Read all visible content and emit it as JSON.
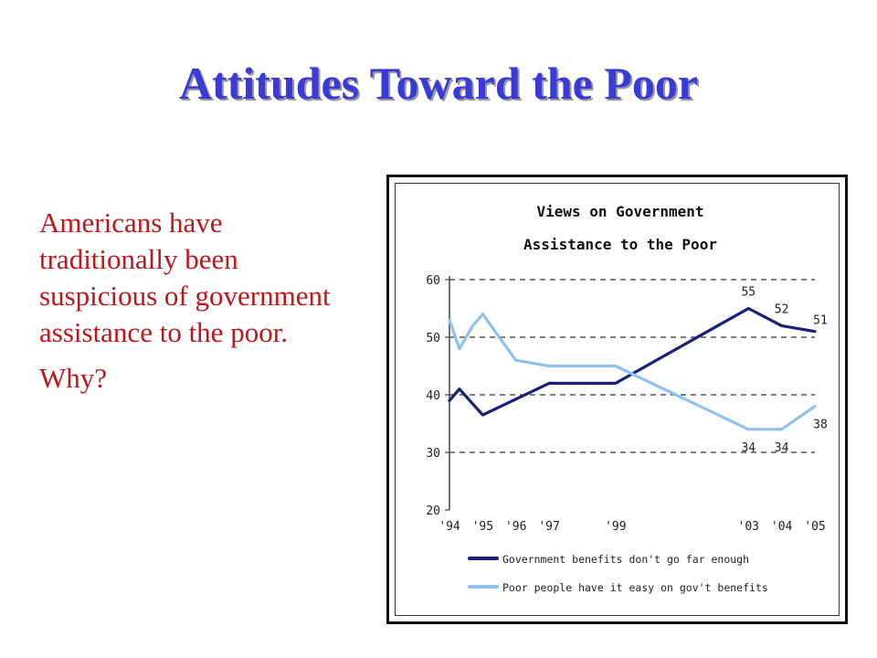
{
  "slide": {
    "title": "Attitudes Toward the Poor",
    "paragraph": "Americans have traditionally been suspicious of government assistance to the poor.",
    "question": "Why?"
  },
  "chart_data": {
    "type": "line",
    "title_line1": "Views on Government",
    "title_line2": "Assistance to the Poor",
    "ylim": [
      20,
      60
    ],
    "yticks": [
      "60",
      "50",
      "40",
      "30",
      "20"
    ],
    "xtick_labels": [
      "'94",
      "'95",
      "'96",
      "'97",
      "'99",
      "'03",
      "'04",
      "'05"
    ],
    "xtick_values": [
      1994.0,
      1995.0,
      1996.0,
      1997.0,
      1999.0,
      2003.0,
      2004.0,
      2005.0
    ],
    "grid": "dashed horizontal",
    "legend_position": "bottom",
    "series": [
      {
        "name": "Government benefits don't go far enough",
        "color": "#1a1f7a",
        "x": [
          1994.0,
          1994.3,
          1995.0,
          1997.0,
          1999.0,
          2003.0,
          2004.0,
          2005.0
        ],
        "y": [
          39,
          41,
          36.5,
          42,
          42,
          55,
          52,
          51
        ],
        "labels": [
          {
            "x": 2003.0,
            "y": 55,
            "text": "55"
          },
          {
            "x": 2004.0,
            "y": 52,
            "text": "52"
          },
          {
            "x": 2005.0,
            "y": 51,
            "text": "51"
          }
        ]
      },
      {
        "name": "Poor people have it easy on gov't benefits",
        "color": "#8ec1ec",
        "x": [
          1994.0,
          1994.3,
          1994.7,
          1995.0,
          1996.0,
          1997.0,
          1999.0,
          2003.0,
          2004.0,
          2005.0
        ],
        "y": [
          53,
          48,
          52,
          54,
          46,
          45,
          45,
          34,
          34,
          38
        ],
        "labels": [
          {
            "x": 2003.0,
            "y": 34,
            "text": "34"
          },
          {
            "x": 2004.0,
            "y": 34,
            "text": "34"
          },
          {
            "x": 2005.0,
            "y": 38,
            "text": "38"
          }
        ]
      }
    ]
  }
}
